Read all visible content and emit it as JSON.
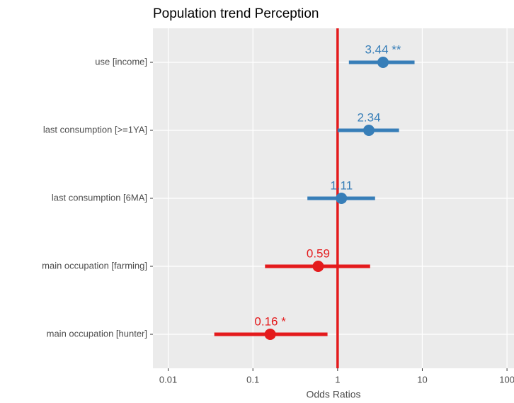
{
  "chart_data": {
    "type": "forest",
    "title": "Population trend Perception",
    "x_label": "Odds Ratios",
    "log_x": true,
    "grid": true,
    "categories": [
      "use [income]",
      "last consumption [>=1YA]",
      "last consumption [6MA]",
      "main occupation [farming]",
      "main occupation [hunter]"
    ],
    "values": [
      3.44,
      2.34,
      1.11,
      0.59,
      0.16
    ],
    "value_labels": [
      "3.44 **",
      "2.34",
      "1.11",
      "0.59",
      "0.16 *"
    ],
    "lower": [
      1.36,
      1.0,
      0.44,
      0.139,
      0.035
    ],
    "upper": [
      8.1,
      5.31,
      2.77,
      2.42,
      0.76
    ],
    "colors": [
      "#377eb8",
      "#377eb8",
      "#377eb8",
      "#e41a1c",
      "#e41a1c"
    ],
    "reference_line": 1,
    "reference_color": "#e41a1c",
    "xlim": [
      0.0066,
      121
    ],
    "xticks": [
      0.01,
      0.1,
      1,
      10,
      100
    ]
  }
}
